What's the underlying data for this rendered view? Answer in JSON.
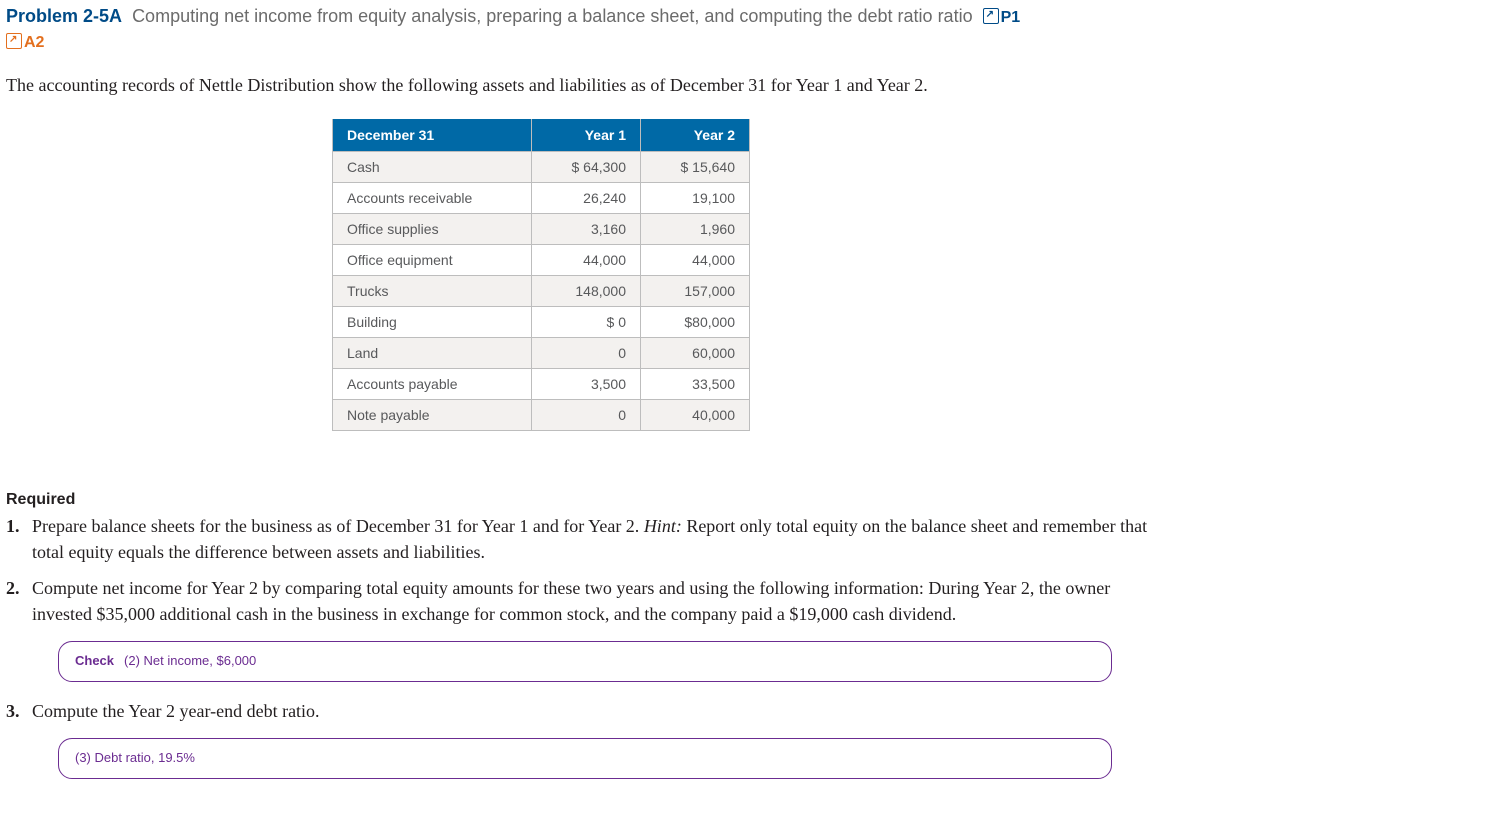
{
  "problem": {
    "label": "Problem 2-5A",
    "title_rest": "Computing net income from equity analysis, preparing a balance sheet, and computing the debt ratio",
    "ratio_word": "ratio",
    "tags": {
      "p1": "P1",
      "a2": "A2"
    }
  },
  "intro": "The accounting records of Nettle Distribution show the following assets and liabilities as of December 31 for Year 1 and Year 2.",
  "table": {
    "type": "table",
    "header_bg": "#0069a6",
    "header_fg": "#ffffff",
    "row_odd_bg": "#f3f1ef",
    "row_even_bg": "#ffffff",
    "border_color": "#bdbdbd",
    "text_color": "#58595b",
    "font_size": 14,
    "columns": [
      "December 31",
      "Year 1",
      "Year 2"
    ],
    "col_align": [
      "left",
      "right",
      "right"
    ],
    "rows": [
      [
        "Cash",
        "$ 64,300",
        "$ 15,640"
      ],
      [
        "Accounts receivable",
        "26,240",
        "19,100"
      ],
      [
        "Office supplies",
        "3,160",
        "1,960"
      ],
      [
        "Office equipment",
        "44,000",
        "44,000"
      ],
      [
        "Trucks",
        "148,000",
        "157,000"
      ],
      [
        "Building",
        "$ 0",
        "$80,000"
      ],
      [
        "Land",
        "0",
        "60,000"
      ],
      [
        "Accounts payable",
        "3,500",
        "33,500"
      ],
      [
        "Note payable",
        "0",
        "40,000"
      ]
    ]
  },
  "required_heading": "Required",
  "required": {
    "r1_a": "Prepare balance sheets for the business as of December 31 for Year 1 and for Year 2. ",
    "r1_hint_label": "Hint:",
    "r1_b": " Report only total equity on the balance sheet and remember that total equity equals the difference between assets and liabilities.",
    "r2": "Compute net income for Year 2 by comparing total equity amounts for these two years and using the following information: During Year 2, the owner invested $35,000 additional cash in the business in exchange for common stock, and the company paid a $19,000 cash dividend.",
    "r3": "Compute the Year 2 year-end debt ratio."
  },
  "checks": {
    "label": "Check",
    "c2": "(2) Net income, $6,000",
    "c3": "(3) Debt ratio, 19.5%"
  },
  "colors": {
    "brand_blue": "#004b87",
    "brand_orange": "#e36f1e",
    "check_purple": "#6b2c91",
    "title_grey": "#6b6b6b",
    "body_text": "#231f20"
  }
}
